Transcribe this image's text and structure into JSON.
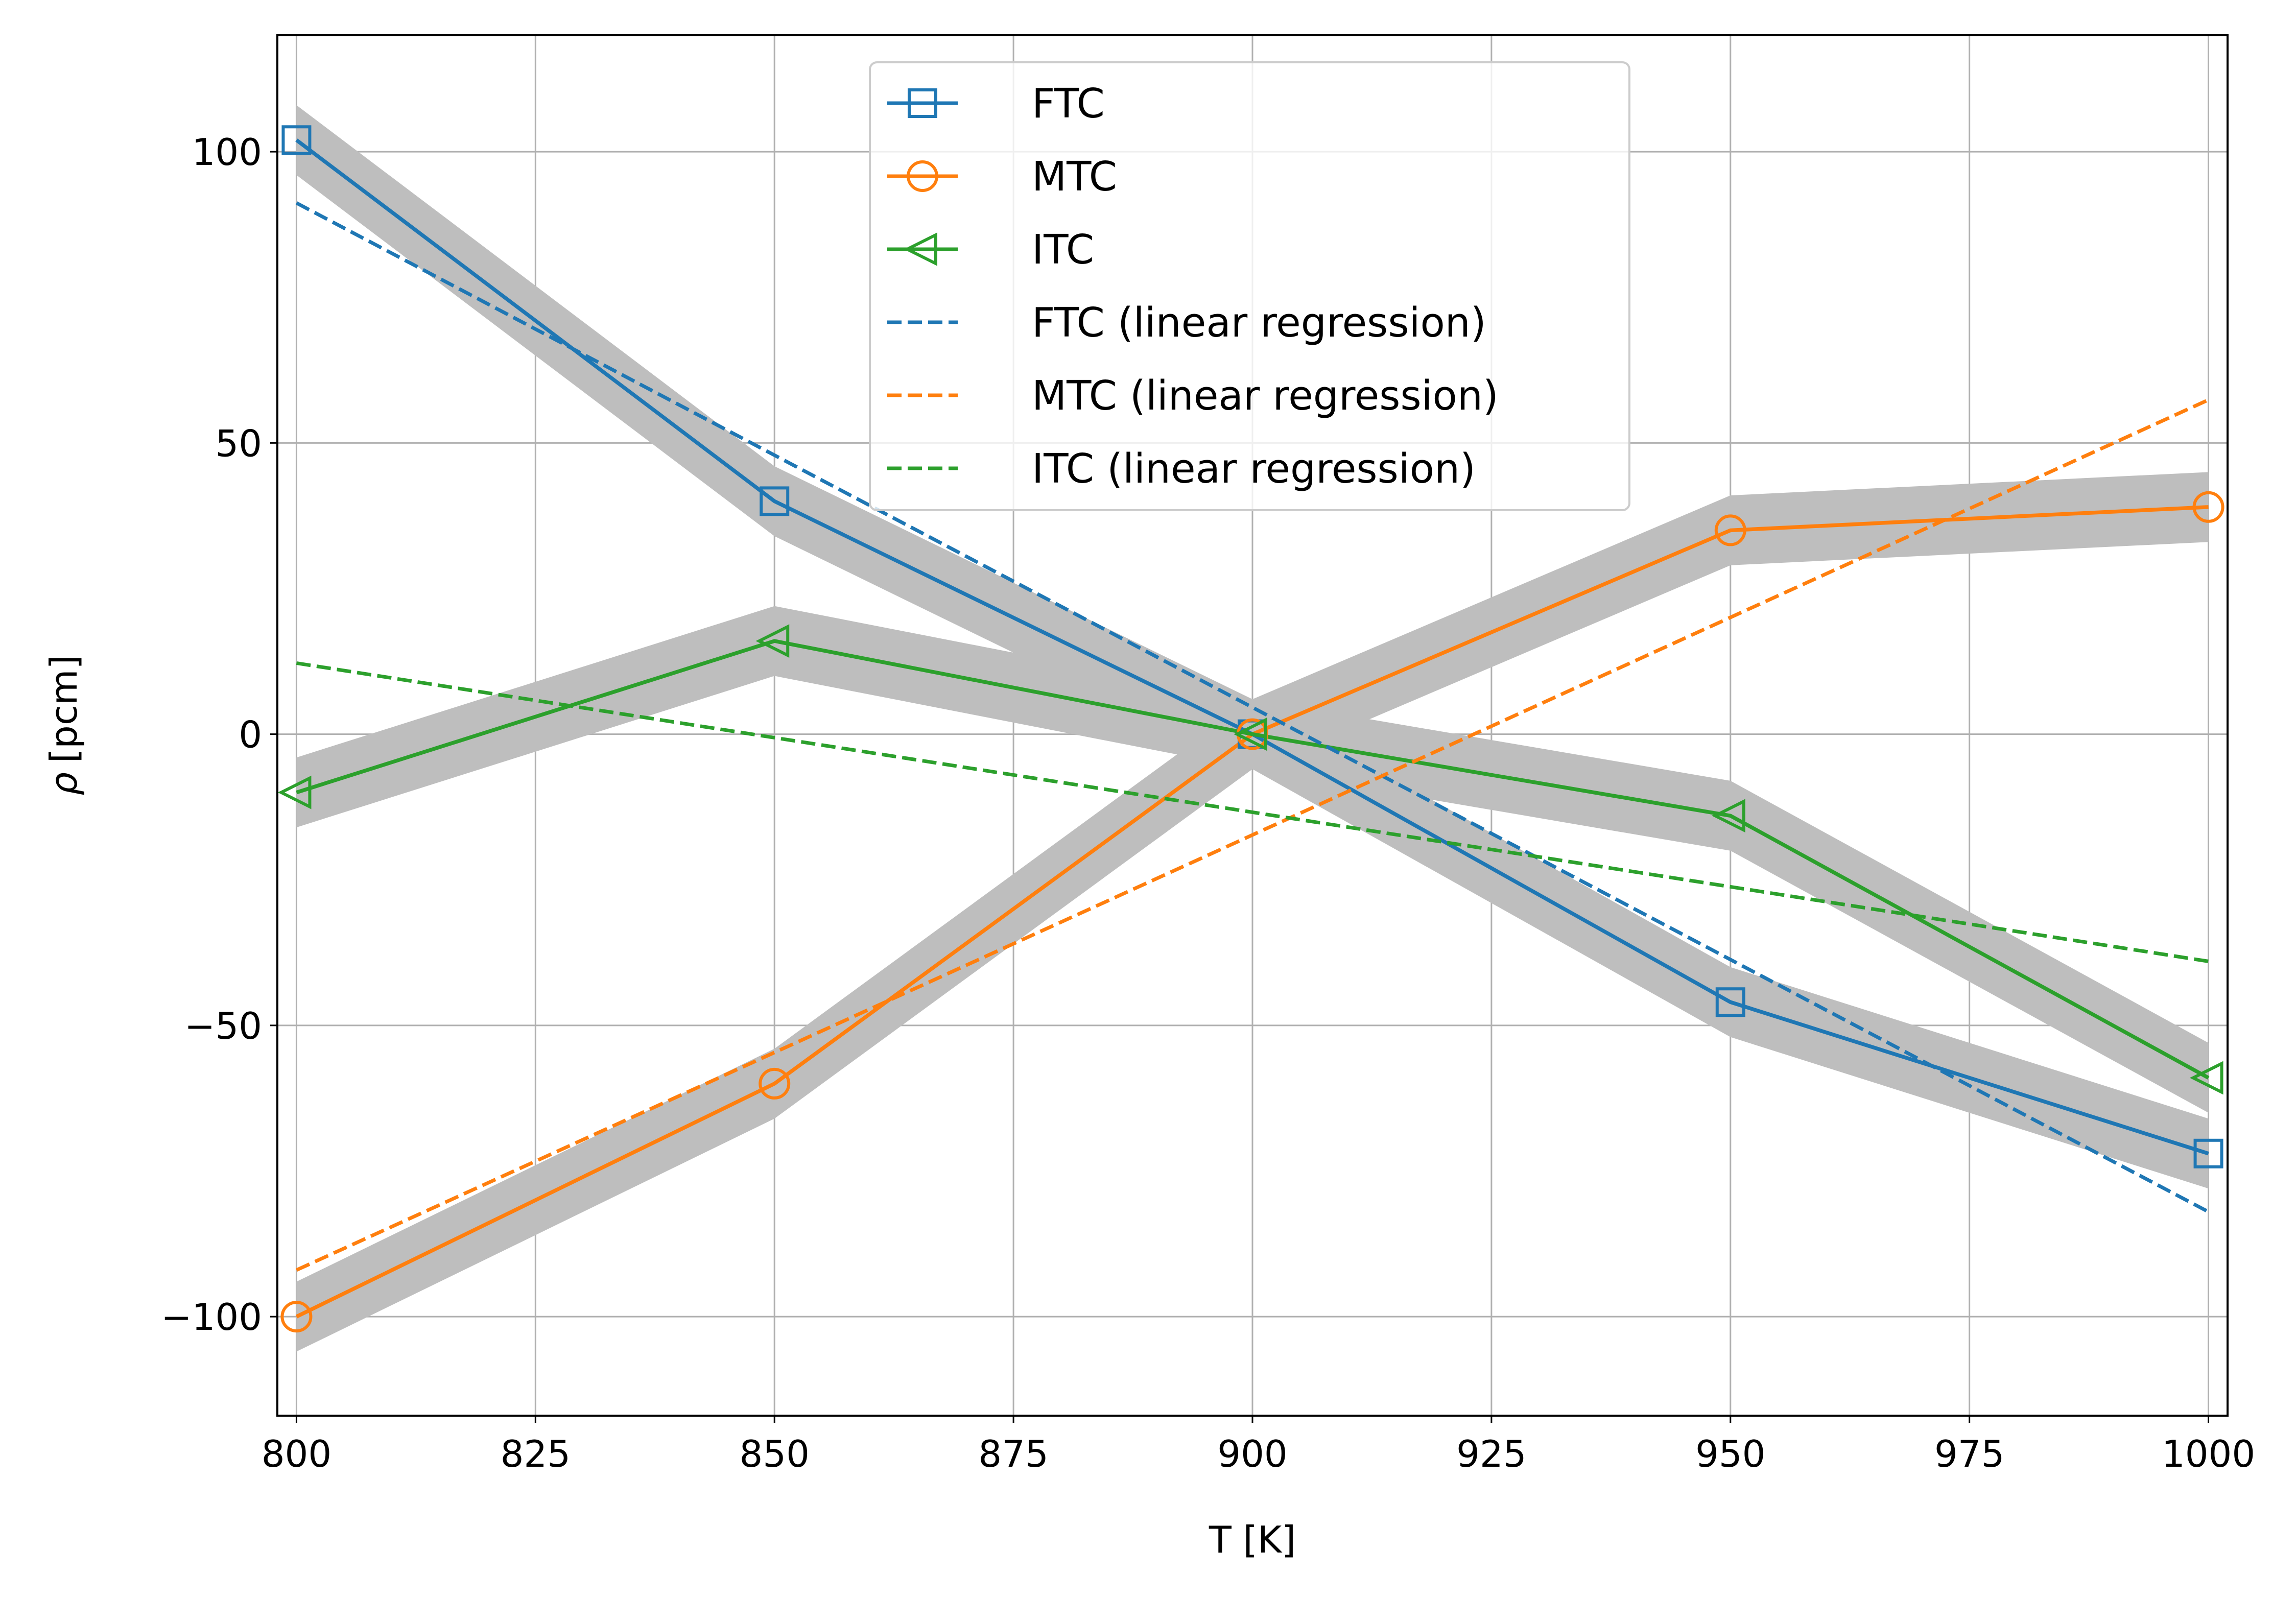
{
  "chart_data": {
    "type": "line",
    "xlabel": "T [K]",
    "ylabel": {
      "symbol": "ρ",
      "unit": "[pcm]"
    },
    "xlim": [
      798,
      1002
    ],
    "ylim": [
      -117,
      120
    ],
    "xticks": [
      800,
      825,
      850,
      875,
      900,
      925,
      950,
      975,
      1000
    ],
    "yticks": [
      -100,
      -50,
      0,
      50,
      100
    ],
    "xtick_labels": [
      "800",
      "825",
      "850",
      "875",
      "900",
      "925",
      "950",
      "975",
      "1000"
    ],
    "ytick_labels": [
      "−100",
      "−50",
      "0",
      "50",
      "100"
    ],
    "grid": true,
    "legend_position": "upper center",
    "band": {
      "color": "#bebebe",
      "half_width": 6
    },
    "series": [
      {
        "name": "FTC",
        "style": "solid",
        "marker": "square",
        "color": "#1f77b4",
        "band": true,
        "x": [
          800,
          850,
          900,
          950,
          1000
        ],
        "y": [
          102,
          40,
          0,
          -46,
          -72
        ]
      },
      {
        "name": "MTC",
        "style": "solid",
        "marker": "circle",
        "color": "#ff7f0e",
        "band": true,
        "x": [
          800,
          850,
          900,
          950,
          1000
        ],
        "y": [
          -100,
          -60,
          0,
          35,
          39
        ]
      },
      {
        "name": "ITC",
        "style": "solid",
        "marker": "triangle-left",
        "color": "#2ca02c",
        "band": true,
        "x": [
          800,
          850,
          900,
          950,
          1000
        ],
        "y": [
          -10,
          16,
          0,
          -14,
          -59
        ]
      },
      {
        "name": "FTC (linear regression)",
        "style": "dashed",
        "marker": "none",
        "color": "#1f77b4",
        "band": false,
        "x": [
          800,
          1000
        ],
        "y": [
          91.2,
          -82
        ]
      },
      {
        "name": "MTC (linear regression)",
        "style": "dashed",
        "marker": "none",
        "color": "#ff7f0e",
        "band": false,
        "x": [
          800,
          1000
        ],
        "y": [
          -92,
          57.4
        ]
      },
      {
        "name": "ITC (linear regression)",
        "style": "dashed",
        "marker": "none",
        "color": "#2ca02c",
        "band": false,
        "x": [
          800,
          1000
        ],
        "y": [
          12.2,
          -39
        ]
      }
    ]
  }
}
